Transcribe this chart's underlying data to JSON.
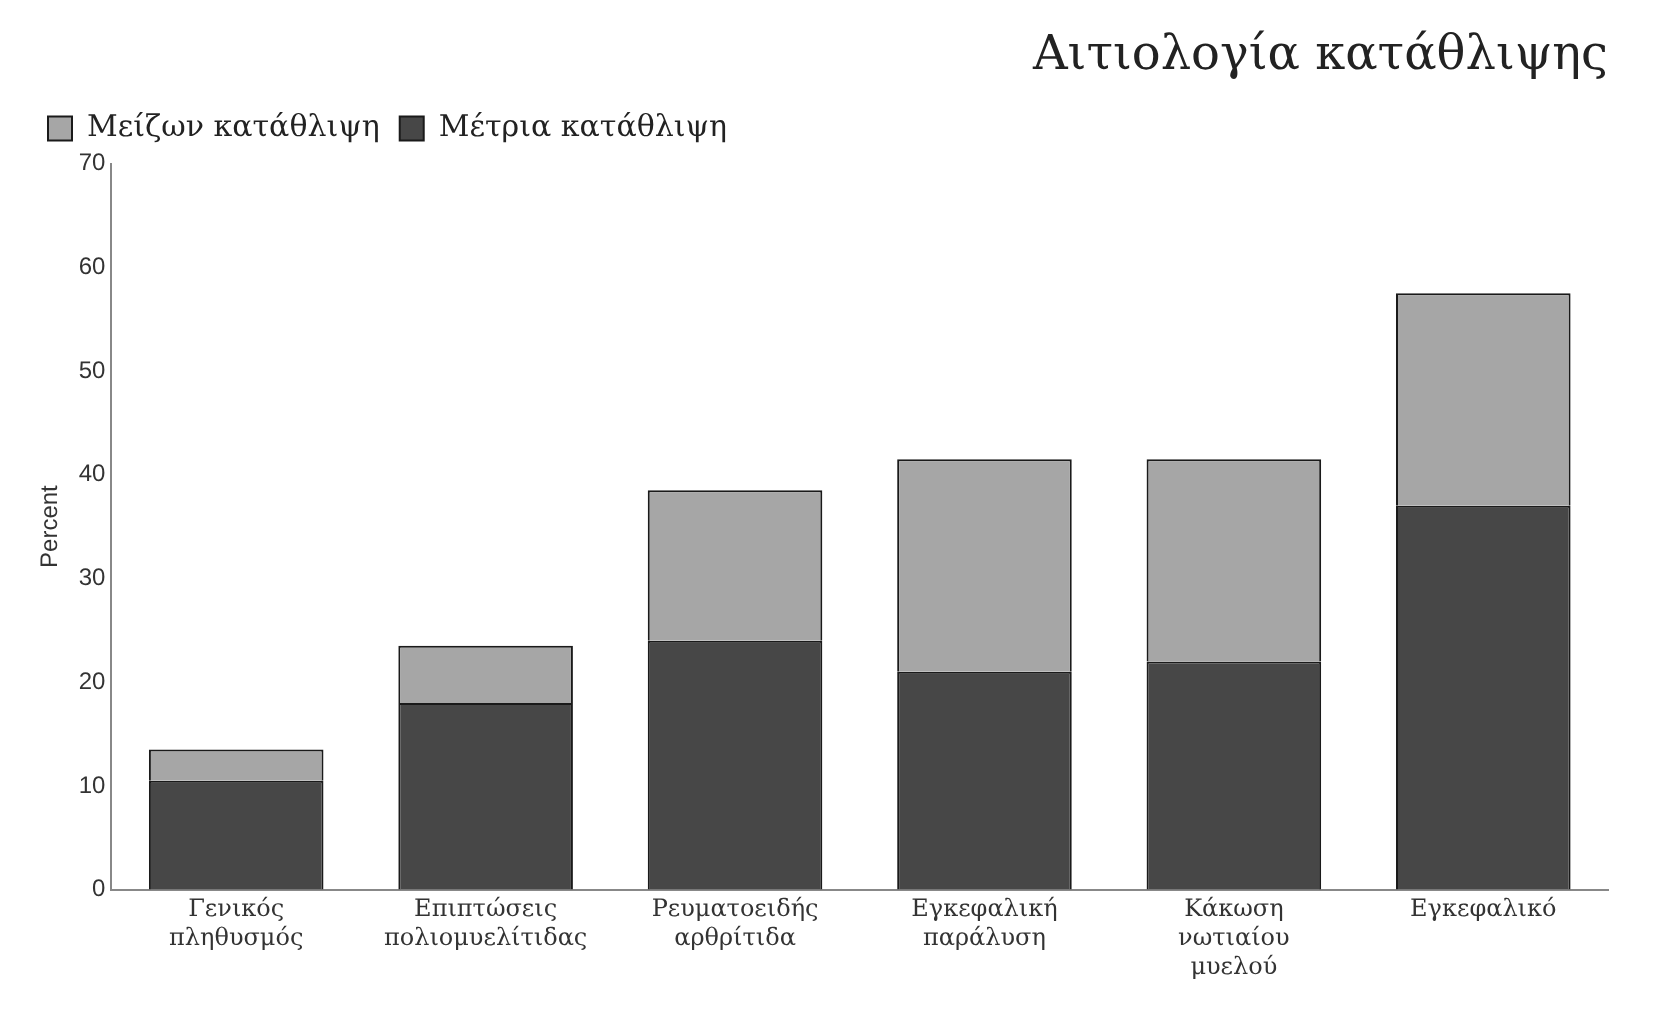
{
  "chart_data": {
    "type": "bar",
    "title": "Αιτιολογία κατάθλιψης",
    "ylabel": "Percent",
    "categories": [
      "Γενικός πληθυσμός",
      "Επιπτώσεις πολιομυελίτιδας",
      "Ρευματοειδής αρθρίτιδα",
      "Εγκεφαλική παράλυση",
      "Κάκωση νωτιαίου μυελού",
      "Εγκεφαλικό"
    ],
    "series": [
      {
        "name": "Μέτρια κατάθλιψη",
        "color": "#474747",
        "values": [
          10.5,
          18,
          24,
          21,
          22,
          37
        ]
      },
      {
        "name": "Μείζων κατάθλιψη",
        "color": "#a6a6a6",
        "values": [
          3,
          5.5,
          14.5,
          20.5,
          19.5,
          20.5
        ]
      }
    ],
    "stacked": true,
    "ylim": [
      0,
      70
    ],
    "yticks": [
      0,
      10,
      20,
      30,
      40,
      50,
      60,
      70
    ],
    "grid": false,
    "legend": "top left"
  }
}
